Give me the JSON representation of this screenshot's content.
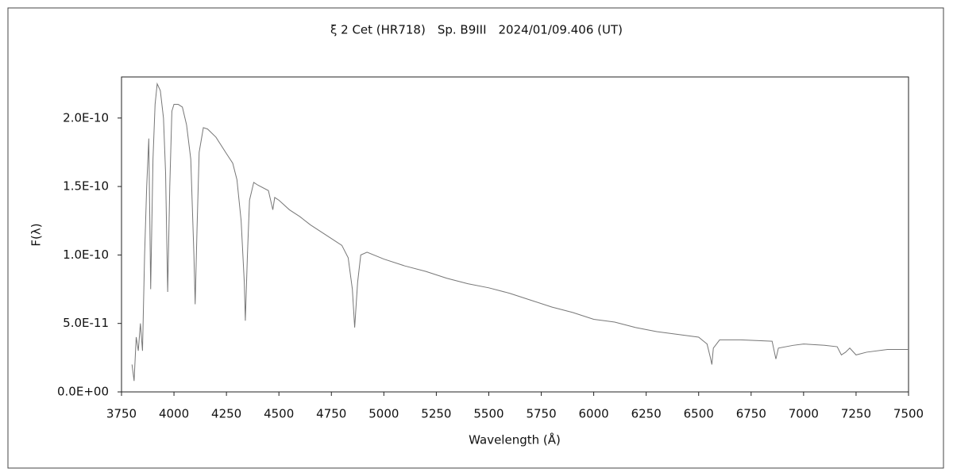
{
  "chart_data": {
    "type": "line",
    "title": "ξ 2 Cet (HR718)　Sp. B9III　2024/01/09.406 (UT)",
    "x_label": "Wavelength (Å)",
    "y_label": "F(λ)",
    "xlim": [
      3750,
      7500
    ],
    "xticks": [
      3750,
      4000,
      4250,
      4500,
      4750,
      5000,
      5250,
      5500,
      5750,
      6000,
      6250,
      6500,
      6750,
      7000,
      7250,
      7500
    ],
    "ylim": [
      0,
      2.3e-10
    ],
    "yticks": [
      {
        "value": 0,
        "label": "0.0E+00"
      },
      {
        "value": 5e-11,
        "label": "5.0E-11"
      },
      {
        "value": 1e-10,
        "label": "1.0E-10"
      },
      {
        "value": 1.5e-10,
        "label": "1.5E-10"
      },
      {
        "value": 2e-10,
        "label": "2.0E-10"
      }
    ],
    "series": [
      {
        "color": "#777777",
        "x": [
          3800,
          3810,
          3820,
          3830,
          3840,
          3850,
          3860,
          3870,
          3880,
          3889,
          3900,
          3910,
          3920,
          3935,
          3950,
          3960,
          3970,
          3980,
          3990,
          4000,
          4020,
          4040,
          4060,
          4080,
          4095,
          4101,
          4110,
          4120,
          4140,
          4160,
          4200,
          4250,
          4280,
          4300,
          4320,
          4335,
          4340,
          4350,
          4360,
          4380,
          4400,
          4450,
          4471,
          4480,
          4500,
          4550,
          4600,
          4650,
          4700,
          4750,
          4800,
          4830,
          4850,
          4861,
          4875,
          4890,
          4920,
          5000,
          5100,
          5200,
          5300,
          5400,
          5500,
          5600,
          5700,
          5800,
          5900,
          6000,
          6100,
          6200,
          6300,
          6400,
          6500,
          6540,
          6556,
          6563,
          6570,
          6600,
          6700,
          6850,
          6868,
          6880,
          6950,
          7000,
          7100,
          7160,
          7180,
          7200,
          7220,
          7250,
          7300,
          7400,
          7500
        ],
        "values": [
          2e-11,
          8e-12,
          4e-11,
          3e-11,
          5e-11,
          3e-11,
          1e-10,
          1.5e-10,
          1.85e-10,
          7.5e-11,
          1.7e-10,
          2.1e-10,
          2.25e-10,
          2.2e-10,
          2e-10,
          1.6e-10,
          7.3e-11,
          1.5e-10,
          2.05e-10,
          2.1e-10,
          2.1e-10,
          2.08e-10,
          1.95e-10,
          1.7e-10,
          1e-10,
          6.4e-11,
          1.2e-10,
          1.75e-10,
          1.93e-10,
          1.92e-10,
          1.86e-10,
          1.74e-10,
          1.67e-10,
          1.55e-10,
          1.25e-10,
          8e-11,
          5.2e-11,
          1e-10,
          1.4e-10,
          1.53e-10,
          1.51e-10,
          1.47e-10,
          1.33e-10,
          1.42e-10,
          1.4e-10,
          1.33e-10,
          1.28e-10,
          1.22e-10,
          1.17e-10,
          1.12e-10,
          1.07e-10,
          9.8e-11,
          7.5e-11,
          4.7e-11,
          8e-11,
          1e-10,
          1.02e-10,
          9.7e-11,
          9.2e-11,
          8.8e-11,
          8.3e-11,
          7.9e-11,
          7.6e-11,
          7.2e-11,
          6.7e-11,
          6.2e-11,
          5.8e-11,
          5.3e-11,
          5.1e-11,
          4.7e-11,
          4.4e-11,
          4.2e-11,
          4e-11,
          3.5e-11,
          2.5e-11,
          2e-11,
          3.2e-11,
          3.8e-11,
          3.8e-11,
          3.7e-11,
          2.4e-11,
          3.2e-11,
          3.4e-11,
          3.5e-11,
          3.4e-11,
          3.3e-11,
          2.7e-11,
          2.9e-11,
          3.2e-11,
          2.7e-11,
          2.9e-11,
          3.1e-11,
          3.1e-11
        ]
      }
    ]
  }
}
